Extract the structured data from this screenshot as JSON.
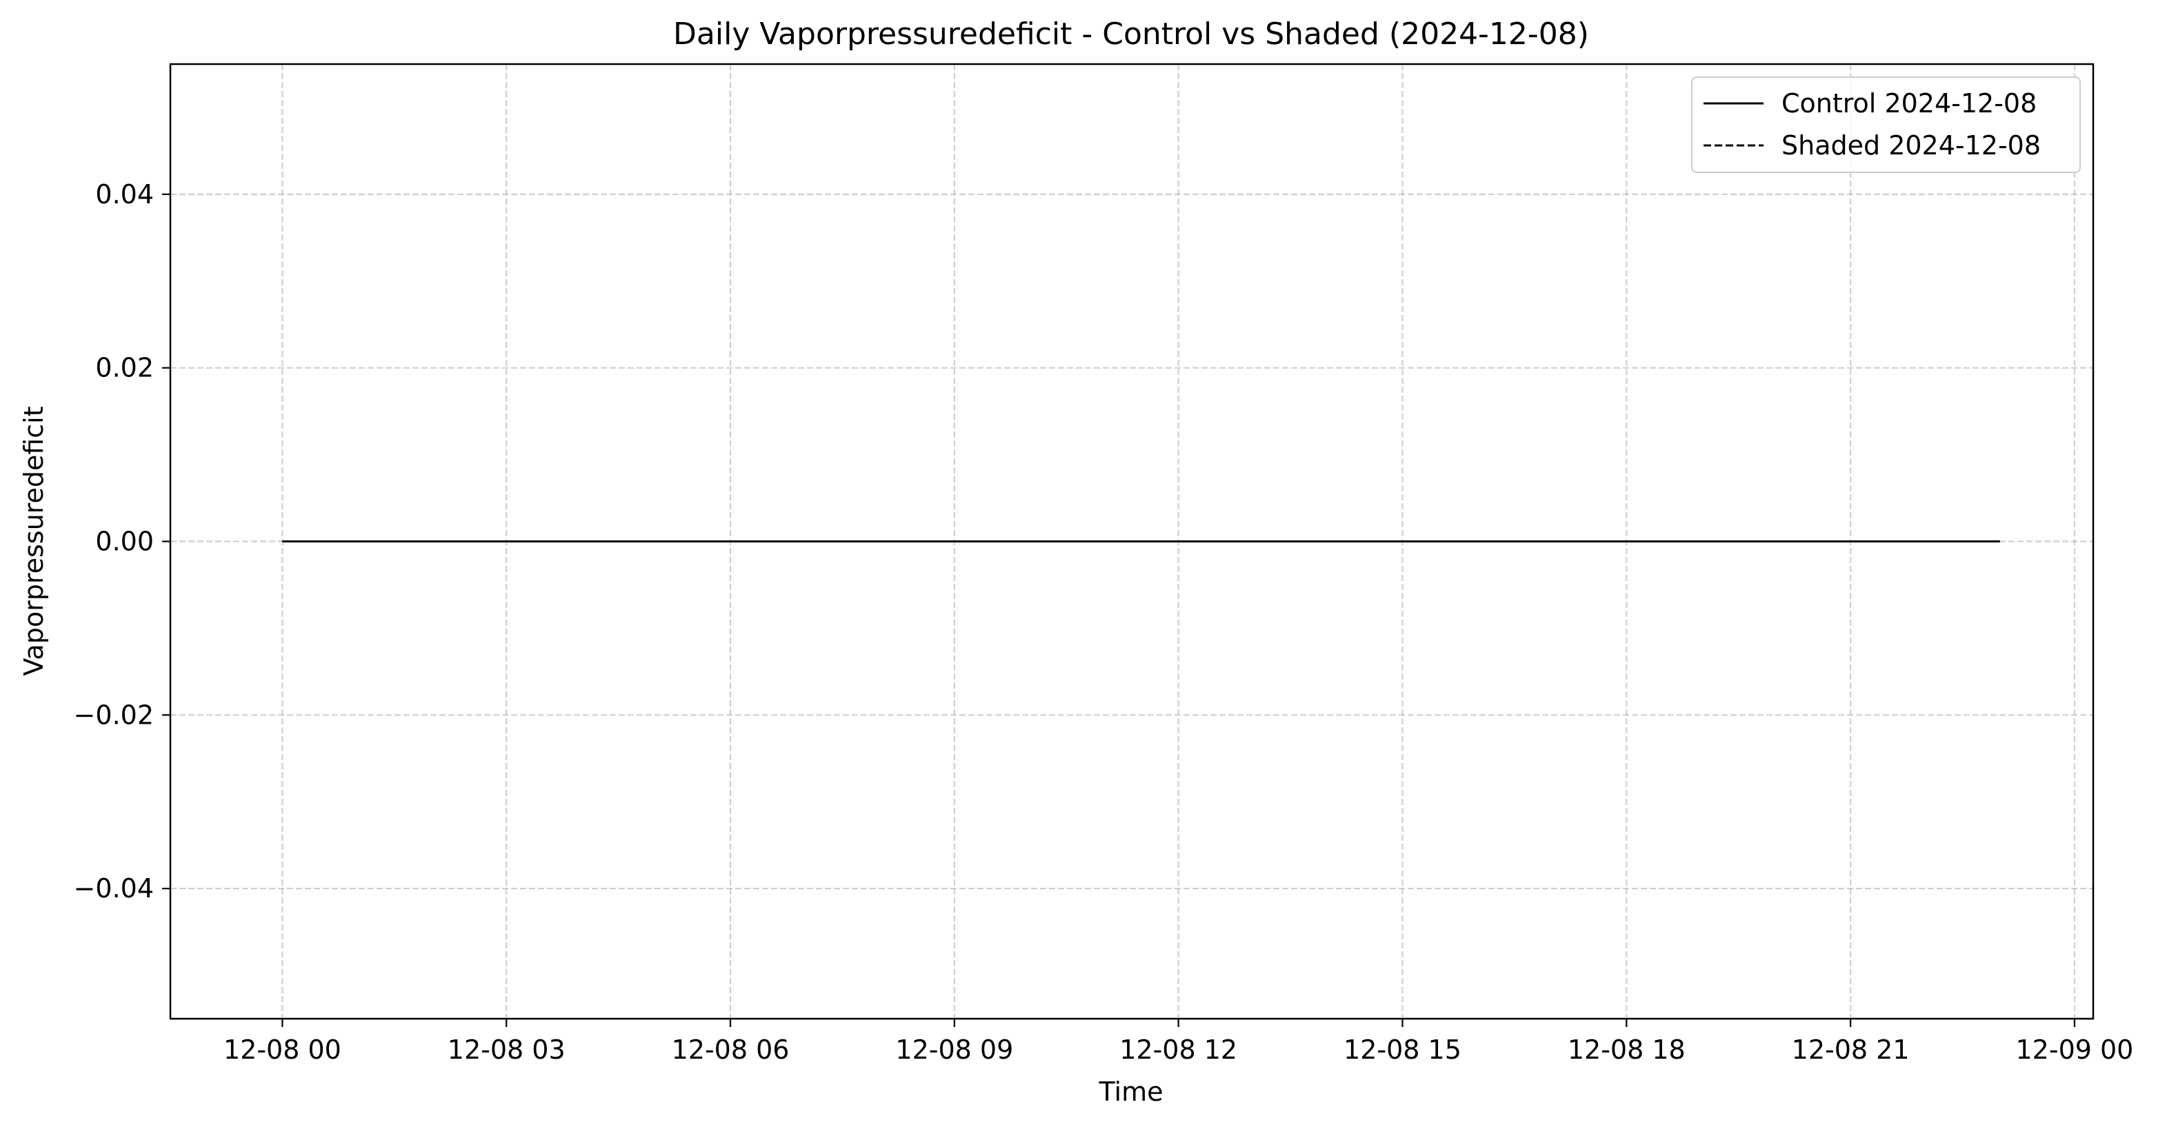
{
  "chart_data": {
    "type": "line",
    "title": "Daily Vaporpressuredeficit - Control vs Shaded (2024-12-08)",
    "xlabel": "Time",
    "ylabel": "Vaporpressuredeficit",
    "x_axis_type": "time",
    "xlim": [
      "2024-12-07 22:30",
      "2024-12-09 00:15"
    ],
    "ylim": [
      -0.055,
      0.055
    ],
    "x_ticks": [
      {
        "value": "2024-12-08 00:00",
        "label": "12-08 00"
      },
      {
        "value": "2024-12-08 03:00",
        "label": "12-08 03"
      },
      {
        "value": "2024-12-08 06:00",
        "label": "12-08 06"
      },
      {
        "value": "2024-12-08 09:00",
        "label": "12-08 09"
      },
      {
        "value": "2024-12-08 12:00",
        "label": "12-08 12"
      },
      {
        "value": "2024-12-08 15:00",
        "label": "12-08 15"
      },
      {
        "value": "2024-12-08 18:00",
        "label": "12-08 18"
      },
      {
        "value": "2024-12-08 21:00",
        "label": "12-08 21"
      },
      {
        "value": "2024-12-09 00:00",
        "label": "12-09 00"
      }
    ],
    "y_ticks": [
      {
        "value": 0.04,
        "label": "0.04"
      },
      {
        "value": 0.02,
        "label": "0.02"
      },
      {
        "value": 0.0,
        "label": "0.00"
      },
      {
        "value": -0.02,
        "label": "−0.02"
      },
      {
        "value": -0.04,
        "label": "−0.04"
      }
    ],
    "grid": true,
    "grid_style": "dashed",
    "legend_position": "top-right",
    "series": [
      {
        "name": "Control 2024-12-08",
        "line_style": "solid",
        "color": "#000000",
        "x": [
          "2024-12-08 00:00",
          "2024-12-08 23:00"
        ],
        "y": [
          0.0,
          0.0
        ]
      },
      {
        "name": "Shaded 2024-12-08",
        "line_style": "dashed",
        "color": "#000000",
        "x": [
          "2024-12-08 00:00",
          "2024-12-08 23:00"
        ],
        "y": [
          0.0,
          0.0
        ]
      }
    ]
  }
}
